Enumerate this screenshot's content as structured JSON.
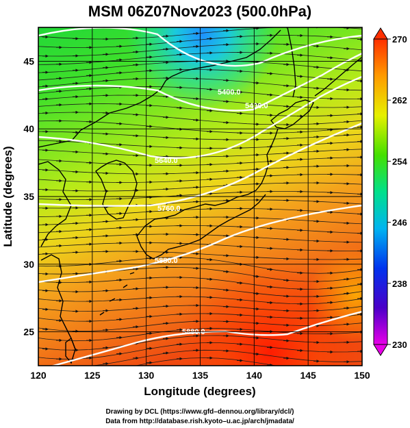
{
  "title": "MSM 06Z07Nov2023 (500.0hPa)",
  "x_axis": {
    "label": "Longitude (degrees)",
    "range": [
      120,
      150
    ],
    "ticks": [
      "120",
      "125",
      "130",
      "135",
      "140",
      "145",
      "150"
    ]
  },
  "y_axis": {
    "label": "Latitude  (degrees)",
    "range": [
      22.5,
      47.5
    ],
    "ticks": [
      "25",
      "30",
      "35",
      "40",
      "45"
    ]
  },
  "colorbar": {
    "range": [
      230,
      270
    ],
    "ticks": [
      "270",
      "262",
      "254",
      "246",
      "238",
      "230"
    ]
  },
  "contour_labels": [
    "5400.0",
    "5400.0",
    "5640.0",
    "5760.0",
    "5880.0",
    "5880.0"
  ],
  "credits": {
    "line1": "Drawing by DCL (https://www.gfd–dennou.org/library/dcl/)",
    "line2": "Data from http://database.rish.kyoto–u.ac.jp/arch/jmadata/"
  },
  "colors": {
    "cold": "#1e90ff",
    "warm": "#ff2a00",
    "contour": "#ffffff",
    "frame": "#000000"
  }
}
